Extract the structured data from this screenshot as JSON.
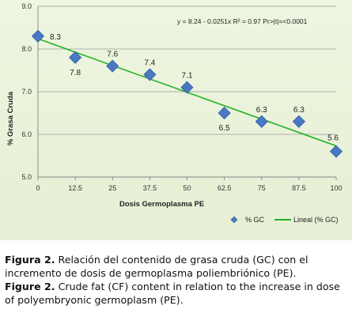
{
  "chart_data": {
    "type": "scatter",
    "xlabel": "Dosis Germoplasma PE",
    "ylabel": "% Grasa Cruda",
    "x_ticks": [
      "0",
      "12.5",
      "25",
      "37.5",
      "50",
      "62.5",
      "75",
      "87.5",
      "100"
    ],
    "y_ticks": [
      "5.0",
      "6.0",
      "7.0",
      "8.0",
      "9.0"
    ],
    "xlim": [
      0,
      100
    ],
    "ylim": [
      5.0,
      9.0
    ],
    "grid": "horizontal",
    "legend_position": "bottom-right",
    "series": [
      {
        "name": "% GC",
        "marker": "diamond",
        "color": "#4a79c2",
        "x": [
          0,
          12.5,
          25,
          37.5,
          50,
          62.5,
          75,
          87.5,
          100
        ],
        "y": [
          8.3,
          7.8,
          7.6,
          7.4,
          7.1,
          6.5,
          6.3,
          6.3,
          5.6
        ],
        "labels": [
          "8.3",
          "7.8",
          "7.6",
          "7.4",
          "7.1",
          "6.5",
          "6.3",
          "6.3",
          "5.6"
        ]
      },
      {
        "name": "Lineal (% GC)",
        "type": "line",
        "color": "#22b222",
        "intercept": 8.24,
        "slope": -0.0251
      }
    ],
    "annotation": "y = 8.24 - 0.0251x    R² = 0.97   Pr>|t|=<0.0001"
  },
  "caption": {
    "es_label": "Figura 2.",
    "es_text": " Relación del contenido de grasa cruda (GC) con el incremento de dosis de germoplasma poliembriónico (PE).",
    "en_label": "Figure 2.",
    "en_text": " Crude fat (CF) content in relation to the increase in dose of polyembryonic germoplasm (PE)."
  }
}
